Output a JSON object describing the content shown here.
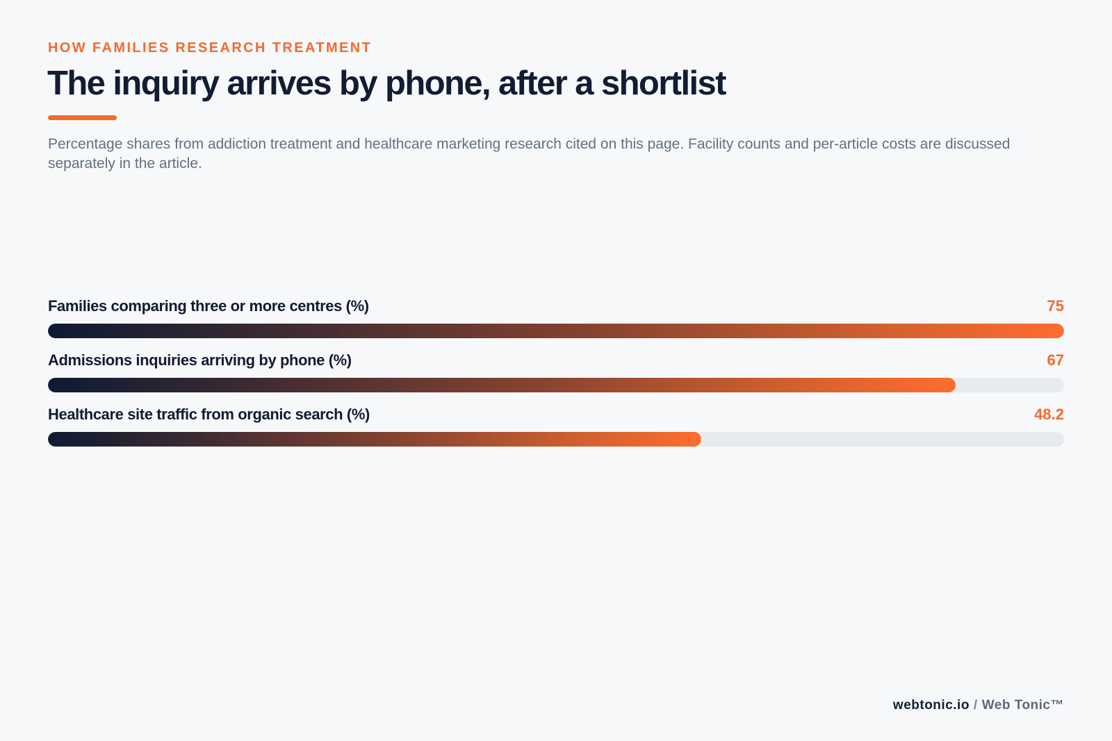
{
  "eyebrow": "HOW FAMILIES RESEARCH TREATMENT",
  "title": "The inquiry arrives by phone, after a shortlist",
  "subtitle": "Percentage shares from addiction treatment and healthcare marketing research cited on this page. Facility counts and per-article costs are discussed separately in the article.",
  "footer": {
    "site": "webtonic.io",
    "separator": "/",
    "brand": "Web Tonic™"
  },
  "colors": {
    "accent": "#f26b2d",
    "navy": "#121c33",
    "track": "#e7eaee",
    "background": "#f6f8fa"
  },
  "chart_data": {
    "type": "bar",
    "orientation": "horizontal",
    "categories": [
      "Families comparing three or more centres (%)",
      "Admissions inquiries arriving by phone (%)",
      "Healthcare site traffic from organic search (%)"
    ],
    "values": [
      75,
      67,
      48.2
    ],
    "value_labels": [
      "75",
      "67",
      "48.2"
    ],
    "xlim": [
      0,
      75
    ],
    "grid": false,
    "legend": "none"
  }
}
